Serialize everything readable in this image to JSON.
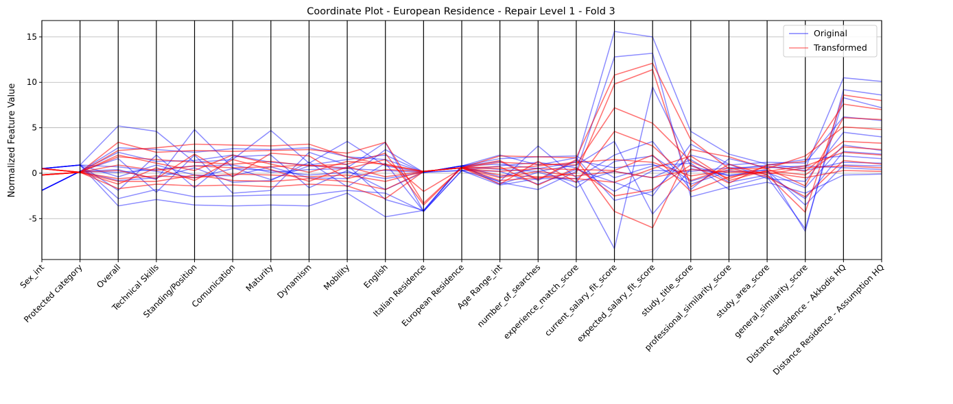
{
  "chart_data": {
    "type": "parallel_coordinates",
    "title": "Coordinate Plot - European Residence - Repair Level 1 - Fold 3",
    "xlabel": "",
    "ylabel": "Normalized Feature Value",
    "ylim": [
      -9.5,
      16.8
    ],
    "yticks": [
      -5,
      0,
      5,
      10,
      15
    ],
    "grid": "horizontal",
    "legend_position": "top-right",
    "axes": [
      "Sex_int",
      "Protected category",
      "Overall",
      "Technical Skills",
      "Standing/Position",
      "Comunication",
      "Maturity",
      "Dynamism",
      "Mobility",
      "English",
      "Italian Residence",
      "European Residence",
      "Age Range_int",
      "number_of_searches",
      "experience_match_score",
      "current_salary_fit_score",
      "expected_salary_fit_score",
      "study_title_score",
      "professional_similarity_score",
      "study_area_score",
      "general_similarity_score",
      "Distance Residence - Akkodis HQ",
      "Distance Residence - Assumption HQ"
    ],
    "series": [
      {
        "name": "Original",
        "color": "#0000ff",
        "lines": [
          [
            0.5,
            0.9,
            5.2,
            4.6,
            1.2,
            1.5,
            4.7,
            1.1,
            3.5,
            0.8,
            0.1,
            0.8,
            1.0,
            0.5,
            1.2,
            15.6,
            15.0,
            4.6,
            2.1,
            1.0,
            0.5,
            10.5,
            10.1
          ],
          [
            -1.9,
            0.2,
            0.4,
            -0.7,
            4.8,
            0.6,
            -0.7,
            0.8,
            0.6,
            3.4,
            -4.2,
            0.3,
            -0.9,
            3.0,
            -0.5,
            -8.3,
            9.5,
            0.8,
            -0.3,
            0.4,
            -6.4,
            9.2,
            8.6
          ],
          [
            0.5,
            0.9,
            -3.6,
            -2.9,
            -3.5,
            -3.6,
            -3.5,
            -3.6,
            -2.2,
            -4.8,
            -4.1,
            0.8,
            -1.0,
            -1.8,
            0.2,
            12.8,
            13.2,
            -2.6,
            -1.5,
            -0.4,
            -6.1,
            8.3,
            7.2
          ],
          [
            -1.9,
            0.2,
            2.3,
            1.3,
            1.4,
            2.0,
            1.2,
            0.9,
            1.5,
            2.0,
            0.1,
            0.8,
            2.0,
            0.9,
            1.7,
            -3.0,
            -2.0,
            2.0,
            0.9,
            1.2,
            1.1,
            6.2,
            5.8
          ],
          [
            0.5,
            0.9,
            0.7,
            0.2,
            -0.5,
            0.5,
            0.3,
            -0.2,
            0.1,
            -0.6,
            0.1,
            0.8,
            0.4,
            0.2,
            0.9,
            3.5,
            -4.5,
            0.5,
            -0.2,
            0.1,
            -1.6,
            3.1,
            2.5
          ],
          [
            -1.9,
            0.2,
            -0.8,
            -0.5,
            0.6,
            -1.0,
            -0.8,
            1.2,
            -1.5,
            1.1,
            -4.2,
            0.3,
            -1.3,
            -0.6,
            -0.6,
            2.0,
            3.5,
            -1.8,
            1.6,
            0.6,
            0.8,
            0.6,
            0.4
          ],
          [
            0.5,
            0.9,
            -1.9,
            2.0,
            -1.6,
            1.8,
            2.0,
            -1.6,
            0.3,
            -1.8,
            0.1,
            0.8,
            1.6,
            1.8,
            1.9,
            -0.5,
            0.8,
            1.1,
            -1.8,
            -1.0,
            -2.2,
            -0.2,
            -0.1
          ],
          [
            -1.9,
            0.2,
            1.6,
            -2.1,
            2.0,
            -2.2,
            -1.9,
            2.3,
            0.9,
            -2.9,
            -4.1,
            0.8,
            -0.4,
            0.6,
            -1.6,
            1.3,
            1.9,
            -0.9,
            0.4,
            0.9,
            1.5,
            1.9,
            1.6
          ],
          [
            0.5,
            0.9,
            -0.4,
            0.9,
            -0.2,
            -0.3,
            0.7,
            -0.5,
            -0.6,
            2.6,
            0.1,
            0.3,
            0.2,
            -1.2,
            0.4,
            -1.0,
            -2.5,
            3.2,
            1.0,
            -0.6,
            -0.9,
            4.5,
            4.0
          ],
          [
            -1.9,
            0.2,
            2.8,
            2.6,
            2.3,
            2.7,
            2.6,
            2.8,
            1.8,
            1.5,
            0.1,
            0.8,
            1.3,
            -0.8,
            1.4,
            0.6,
            1.0,
            -1.2,
            0.2,
            0.3,
            -3.5,
            0.9,
            0.8
          ],
          [
            0.5,
            0.9,
            -2.8,
            -1.8,
            -2.6,
            -2.5,
            -2.4,
            -2.4,
            -1.9,
            -2.2,
            -4.2,
            0.8,
            -1.2,
            0.1,
            -1.0,
            0.2,
            -0.5,
            1.5,
            -1.0,
            -0.2,
            -2.8,
            2.4,
            2.1
          ],
          [
            -1.9,
            0.2,
            0.1,
            0.4,
            0.8,
            0.9,
            0.1,
            0.4,
            0.5,
            0.3,
            0.1,
            0.3,
            0.8,
            1.2,
            0.6,
            -2.0,
            0.3,
            0.2,
            0.6,
            0.7,
            0.3,
            1.2,
            1.1
          ]
        ]
      },
      {
        "name": "Transformed",
        "color": "#ff0000",
        "lines": [
          [
            0.5,
            0.1,
            3.4,
            2.3,
            2.5,
            2.4,
            2.5,
            2.6,
            2.2,
            3.4,
            -3.3,
            0.6,
            1.9,
            1.8,
            1.7,
            10.8,
            12.1,
            3.7,
            0.5,
            0.5,
            -1.4,
            6.1,
            5.9
          ],
          [
            -0.2,
            0.1,
            0.9,
            0.3,
            0.8,
            0.6,
            0.7,
            0.9,
            0.5,
            1.5,
            -2.0,
            0.5,
            0.2,
            0.5,
            0.4,
            0.3,
            2.0,
            -2.0,
            -0.4,
            0.2,
            0.8,
            2.3,
            2.0
          ],
          [
            0.5,
            0.1,
            -1.7,
            -1.2,
            -1.4,
            -1.3,
            -1.5,
            -1.2,
            -1.4,
            -2.8,
            0.2,
            0.6,
            -0.8,
            -0.5,
            0.0,
            9.8,
            11.4,
            -1.5,
            1.0,
            -0.2,
            -4.3,
            8.6,
            8.0
          ],
          [
            -0.2,
            0.1,
            2.5,
            2.8,
            3.2,
            3.1,
            3.0,
            3.2,
            1.8,
            0.9,
            0.2,
            0.6,
            1.2,
            1.0,
            0.9,
            7.2,
            5.5,
            1.3,
            -0.6,
            0.8,
            0.2,
            3.5,
            3.3
          ],
          [
            0.5,
            0.1,
            -0.6,
            -0.3,
            -0.5,
            -0.1,
            -0.2,
            -0.4,
            -0.2,
            -0.9,
            0.2,
            0.6,
            -0.5,
            0.2,
            -0.3,
            0.2,
            -0.5,
            0.4,
            0.1,
            0.1,
            -0.5,
            0.3,
            0.2
          ],
          [
            -0.2,
            0.1,
            1.8,
            1.5,
            1.2,
            1.0,
            1.3,
            0.8,
            1.0,
            2.2,
            -3.5,
            0.6,
            1.4,
            -0.7,
            1.5,
            -4.2,
            -6.0,
            2.6,
            1.8,
            0.5,
            1.9,
            5.1,
            4.8
          ],
          [
            0.5,
            0.1,
            -1.2,
            0.6,
            -0.8,
            1.5,
            0.4,
            -0.9,
            0.7,
            -0.4,
            0.2,
            0.6,
            -1.2,
            1.3,
            -1.0,
            4.6,
            3.0,
            -0.8,
            0.6,
            -0.4,
            -2.6,
            1.4,
            1.0
          ],
          [
            -0.2,
            0.1,
            0.3,
            -0.6,
            2.1,
            -0.4,
            2.2,
            1.9,
            -0.6,
            0.4,
            0.2,
            0.6,
            0.7,
            -1.3,
            0.6,
            -2.5,
            -1.8,
            0.9,
            -1.1,
            0.9,
            1.3,
            7.6,
            7.0
          ],
          [
            0.5,
            0.1,
            2.0,
            1.1,
            0.3,
            2.0,
            1.0,
            0.1,
            1.3,
            1.0,
            0.2,
            0.6,
            0.5,
            0.8,
            1.2,
            1.5,
            1.2,
            -0.3,
            0.3,
            -0.1,
            0.6,
            0.8,
            0.6
          ],
          [
            -0.2,
            0.1,
            -0.9,
            -0.9,
            -0.2,
            -0.8,
            -0.9,
            -0.6,
            -0.9,
            -1.8,
            0.2,
            0.6,
            -0.2,
            -0.4,
            -0.6,
            -1.0,
            0.5,
            1.9,
            -0.8,
            0.3,
            -0.2,
            2.9,
            2.6
          ]
        ]
      }
    ]
  }
}
